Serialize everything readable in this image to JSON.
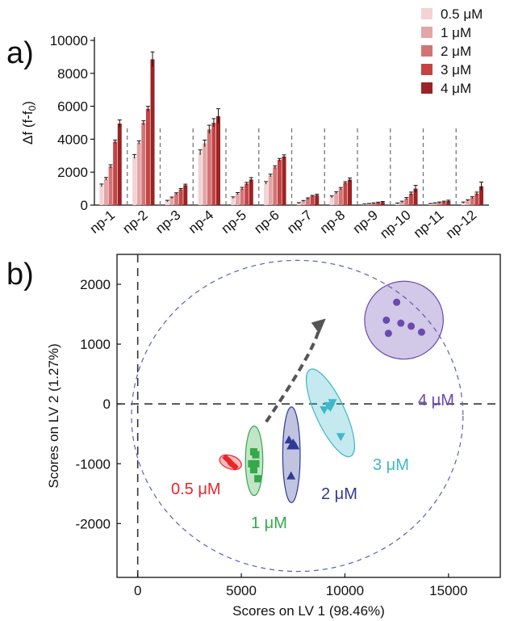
{
  "chart_data": [
    {
      "type": "bar",
      "panel_label": "a)",
      "ylabel": "Δf (f-f",
      "ylabel_sub": "0",
      "ylabel_close": ")",
      "ylim": [
        0,
        10000
      ],
      "yticks": [
        0,
        2000,
        4000,
        6000,
        8000,
        10000
      ],
      "categories": [
        "np-1",
        "np-2",
        "np-3",
        "np-4",
        "np-5",
        "np-6",
        "np-7",
        "np-8",
        "np-9",
        "np-10",
        "np-11",
        "np-12"
      ],
      "legend_position": "top-right",
      "series": [
        {
          "name": "0.5 μM",
          "color": "#f3d3d4",
          "values": [
            1200,
            2950,
            250,
            3200,
            450,
            1350,
            120,
            500,
            50,
            100,
            80,
            150
          ],
          "errors": [
            80,
            120,
            40,
            150,
            50,
            80,
            30,
            60,
            20,
            30,
            20,
            40
          ]
        },
        {
          "name": "1 μM",
          "color": "#e3a5a6",
          "values": [
            1600,
            3800,
            450,
            3750,
            700,
            1800,
            250,
            750,
            80,
            200,
            120,
            280
          ],
          "errors": [
            80,
            100,
            40,
            200,
            60,
            80,
            30,
            60,
            20,
            40,
            20,
            40
          ]
        },
        {
          "name": "2 μM",
          "color": "#d27475",
          "values": [
            2350,
            5000,
            700,
            4600,
            1000,
            2300,
            400,
            1000,
            110,
            400,
            160,
            450
          ],
          "errors": [
            100,
            120,
            50,
            250,
            80,
            80,
            40,
            70,
            30,
            60,
            30,
            60
          ]
        },
        {
          "name": "3 μM",
          "color": "#c64343",
          "values": [
            3850,
            5850,
            950,
            5000,
            1300,
            2750,
            550,
            1350,
            150,
            700,
            200,
            700
          ],
          "errors": [
            100,
            150,
            60,
            250,
            80,
            80,
            40,
            70,
            30,
            90,
            40,
            90
          ]
        },
        {
          "name": "4 μM",
          "color": "#9a2325",
          "values": [
            4950,
            8850,
            1200,
            5400,
            1550,
            2950,
            600,
            1550,
            180,
            1000,
            250,
            1150
          ],
          "errors": [
            220,
            450,
            70,
            450,
            120,
            100,
            60,
            100,
            40,
            200,
            50,
            250
          ]
        }
      ]
    },
    {
      "type": "scatter",
      "panel_label": "b)",
      "xlabel": "Scores on LV 1 (98.46%)",
      "ylabel": "Scores on LV 2 (1.27%)",
      "xlim": [
        -1000,
        17500
      ],
      "ylim": [
        -2900,
        2500
      ],
      "xticks": [
        0,
        5000,
        10000,
        15000
      ],
      "yticks": [
        -2000,
        -1000,
        0,
        1000,
        2000
      ],
      "groups": [
        {
          "name": "0.5 μM",
          "color": "#e8262a",
          "marker": "diamond",
          "points": [
            [
              4250,
              -900
            ],
            [
              4400,
              -950
            ],
            [
              4500,
              -1000
            ],
            [
              4600,
              -1020
            ],
            [
              4700,
              -1050
            ],
            [
              4450,
              -970
            ]
          ],
          "ellipse": {
            "cx": 4480,
            "cy": -975,
            "rx": 550,
            "ry": 110,
            "angle": 20
          }
        },
        {
          "name": "1 μM",
          "color": "#35a84a",
          "marker": "square",
          "points": [
            [
              5600,
              -800
            ],
            [
              5700,
              -850
            ],
            [
              5500,
              -1000
            ],
            [
              5700,
              -1000
            ],
            [
              5600,
              -1100
            ],
            [
              5800,
              -1250
            ]
          ],
          "ellipse": {
            "cx": 5620,
            "cy": -950,
            "rx": 420,
            "ry": 580,
            "angle": 0
          }
        },
        {
          "name": "2 μM",
          "color": "#2e3a96",
          "marker": "triangle",
          "points": [
            [
              7300,
              -600
            ],
            [
              7500,
              -650
            ],
            [
              7400,
              -700
            ],
            [
              7600,
              -700
            ],
            [
              7400,
              -1200
            ]
          ],
          "ellipse": {
            "cx": 7420,
            "cy": -850,
            "rx": 420,
            "ry": 800,
            "angle": 0
          }
        },
        {
          "name": "3 μM",
          "color": "#3db8c9",
          "marker": "triangle-down",
          "points": [
            [
              9000,
              -100
            ],
            [
              9200,
              -30
            ],
            [
              9400,
              20
            ],
            [
              9300,
              -60
            ],
            [
              9800,
              -550
            ]
          ],
          "ellipse": {
            "cx": 9300,
            "cy": -150,
            "rx": 700,
            "ry": 800,
            "angle": -25
          }
        },
        {
          "name": "4 μM",
          "color": "#6a4ab0",
          "marker": "circle",
          "points": [
            [
              12500,
              1700
            ],
            [
              12000,
              1400
            ],
            [
              12700,
              1350
            ],
            [
              13200,
              1300
            ],
            [
              12100,
              1180
            ],
            [
              13700,
              1200
            ]
          ],
          "ellipse": {
            "cx": 12850,
            "cy": 1400,
            "rx": 1900,
            "ry": 650,
            "angle": -15
          }
        }
      ],
      "confidence_ellipse": {
        "cx": 7700,
        "cy": -200,
        "rx": 8000,
        "ry": 2600
      },
      "arrow": {
        "from": [
          6200,
          -300
        ],
        "to": [
          9000,
          1400
        ]
      }
    }
  ]
}
